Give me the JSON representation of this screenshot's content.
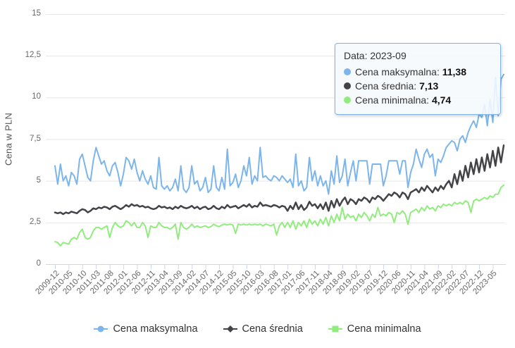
{
  "colors": {
    "max_series": "#7cb5ec",
    "avg_series": "#434348",
    "min_series": "#90ed7d",
    "grid_line": "#e6e6e6",
    "axis_line": "#ccd6eb",
    "axis_text": "#666666",
    "legend_text": "#333333",
    "tooltip_border": "#7cb5ec"
  },
  "tooltip": {
    "header": "Data: 2023-09",
    "rows": [
      {
        "label": "Cena maksymalna: ",
        "value": "11,38"
      },
      {
        "label": "Cena średnia: ",
        "value": "7,13"
      },
      {
        "label": "Cena minimalna: ",
        "value": "4,74"
      }
    ]
  },
  "chart_data": {
    "type": "line",
    "title": "",
    "grid": "horizontal",
    "legend_position": "bottom",
    "y_axis": {
      "title": "Cena w PLN",
      "min": 0,
      "max": 15,
      "ticks": [
        {
          "value": 0,
          "label": "0"
        },
        {
          "value": 2.5,
          "label": "2,5"
        },
        {
          "value": 5,
          "label": "5"
        },
        {
          "value": 7.5,
          "label": "7,5"
        },
        {
          "value": 10,
          "label": "10"
        },
        {
          "value": 12.5,
          "label": "12,5"
        },
        {
          "value": 15,
          "label": "15"
        }
      ]
    },
    "x_axis": {
      "frequency": "monthly",
      "first_point": "2009-12",
      "last_point": "2023-09",
      "points_per_tick": 5,
      "tick_labels": [
        "2009-12",
        "2010-05",
        "2010-10",
        "2011-03",
        "2011-08",
        "2012-01",
        "2012-06",
        "2012-11",
        "2013-04",
        "2013-09",
        "2014-02",
        "2014-07",
        "2014-12",
        "2015-05",
        "2015-10",
        "2016-03",
        "2016-08",
        "2017-01",
        "2017-06",
        "2017-11",
        "2018-04",
        "2018-09",
        "2019-02",
        "2019-07",
        "2019-12",
        "2020-06",
        "2020-11",
        "2021-04",
        "2021-09",
        "2022-02",
        "2022-07",
        "2022-12",
        "2023-05"
      ]
    },
    "series": [
      {
        "name": "Cena maksymalna",
        "color": "#7cb5ec",
        "marker": "circle",
        "last_value": 11.38,
        "values": [
          5.9,
          4.8,
          6.0,
          5.0,
          5.3,
          4.7,
          5.5,
          5.3,
          4.8,
          6.3,
          6.6,
          5.9,
          5.2,
          5.0,
          6.2,
          7.0,
          6.5,
          6.0,
          6.2,
          5.6,
          5.3,
          5.9,
          6.1,
          5.5,
          4.7,
          5.4,
          6.4,
          6.2,
          5.7,
          6.3,
          5.5,
          5.0,
          5.6,
          5.1,
          4.8,
          5.3,
          4.6,
          4.5,
          6.4,
          4.7,
          4.5,
          4.7,
          4.4,
          4.6,
          5.1,
          4.4,
          5.9,
          4.5,
          4.3,
          4.6,
          5.9,
          4.8,
          5.0,
          4.4,
          4.6,
          5.2,
          4.3,
          4.5,
          5.9,
          4.6,
          4.4,
          5.2,
          4.5,
          6.9,
          4.7,
          4.9,
          5.4,
          4.6,
          5.0,
          5.9,
          5.3,
          6.4,
          4.8,
          5.3,
          5.0,
          7.0,
          5.2,
          5.3,
          5.1,
          5.0,
          5.3,
          5.2,
          5.0,
          5.3,
          5.1,
          4.9,
          5.1,
          4.6,
          6.6,
          4.7,
          5.0,
          4.4,
          4.6,
          6.4,
          5.0,
          5.6,
          4.7,
          5.3,
          4.7,
          5.0,
          4.2,
          5.6,
          4.8,
          6.5,
          4.9,
          5.3,
          6.3,
          4.7,
          5.5,
          6.2,
          5.0,
          6.2,
          6.2,
          6.2,
          6.2,
          4.8,
          6.0,
          6.0,
          6.0,
          6.0,
          4.7,
          5.3,
          6.2,
          6.2,
          6.2,
          6.2,
          5.4,
          6.2,
          6.2,
          4.6,
          5.5,
          6.0,
          6.9,
          6.3,
          5.8,
          6.6,
          6.9,
          6.4,
          6.6,
          5.3,
          6.3,
          6.1,
          6.5,
          7.0,
          7.2,
          7.4,
          7.3,
          6.8,
          7.5,
          7.7,
          7.3,
          7.9,
          8.3,
          8.6,
          8.2,
          9.0,
          8.8,
          9.6,
          8.3,
          9.9,
          8.5,
          11.2,
          8.9,
          11.1,
          11.38
        ]
      },
      {
        "name": "Cena średnia",
        "color": "#434348",
        "marker": "diamond",
        "last_value": 7.13,
        "values": [
          3.1,
          3.05,
          3.1,
          3.0,
          3.1,
          3.05,
          3.15,
          3.1,
          3.05,
          3.2,
          3.3,
          3.25,
          3.1,
          3.2,
          3.35,
          3.3,
          3.4,
          3.35,
          3.45,
          3.4,
          3.3,
          3.45,
          3.5,
          3.4,
          3.3,
          3.4,
          3.55,
          3.45,
          3.6,
          3.5,
          3.55,
          3.45,
          3.5,
          3.4,
          3.45,
          3.35,
          3.3,
          3.35,
          3.5,
          3.4,
          3.45,
          3.35,
          3.4,
          3.3,
          3.45,
          3.35,
          3.5,
          3.4,
          3.35,
          3.4,
          3.5,
          3.35,
          3.45,
          3.3,
          3.4,
          3.45,
          3.3,
          3.35,
          3.5,
          3.35,
          3.3,
          3.45,
          3.35,
          3.55,
          3.4,
          3.45,
          3.5,
          3.35,
          3.45,
          3.55,
          3.45,
          3.6,
          3.4,
          3.5,
          3.45,
          3.7,
          3.5,
          3.55,
          3.5,
          3.45,
          3.55,
          3.5,
          3.4,
          3.5,
          3.45,
          3.2,
          3.5,
          3.3,
          3.7,
          3.3,
          3.55,
          3.25,
          3.4,
          3.75,
          3.5,
          3.6,
          3.35,
          3.6,
          3.3,
          3.7,
          3.2,
          3.8,
          3.4,
          3.9,
          3.5,
          3.8,
          4.0,
          3.6,
          3.9,
          3.8,
          3.6,
          3.9,
          3.8,
          4.0,
          3.9,
          3.7,
          4.0,
          3.9,
          4.1,
          4.0,
          3.8,
          4.0,
          4.2,
          4.1,
          4.3,
          4.2,
          4.0,
          4.3,
          4.2,
          3.9,
          4.3,
          4.4,
          4.5,
          4.3,
          4.6,
          4.4,
          4.7,
          4.5,
          4.3,
          4.6,
          4.4,
          4.7,
          4.5,
          4.8,
          5.0,
          4.6,
          5.4,
          4.8,
          5.6,
          5.0,
          5.9,
          5.2,
          6.1,
          5.4,
          6.3,
          5.5,
          6.4,
          5.6,
          6.6,
          5.8,
          6.8,
          5.9,
          7.0,
          6.1,
          7.13
        ]
      },
      {
        "name": "Cena minimalna",
        "color": "#90ed7d",
        "marker": "square",
        "last_value": 4.74,
        "values": [
          1.35,
          1.3,
          1.1,
          1.3,
          1.25,
          1.2,
          1.5,
          1.6,
          1.5,
          1.9,
          2.1,
          1.6,
          1.5,
          1.6,
          2.0,
          2.2,
          2.2,
          2.1,
          2.2,
          2.3,
          1.6,
          2.2,
          2.5,
          2.3,
          2.2,
          2.3,
          2.6,
          2.5,
          2.3,
          2.5,
          2.2,
          2.2,
          2.5,
          2.3,
          1.6,
          2.3,
          2.2,
          2.2,
          2.5,
          2.3,
          2.2,
          2.2,
          2.1,
          2.2,
          2.4,
          1.5,
          2.5,
          2.2,
          2.1,
          2.2,
          2.4,
          2.2,
          2.3,
          2.2,
          2.25,
          2.3,
          2.2,
          2.25,
          2.4,
          2.3,
          2.25,
          2.35,
          2.4,
          2.35,
          2.4,
          2.35,
          1.85,
          2.4,
          2.35,
          2.4,
          2.35,
          2.4,
          2.35,
          2.4,
          2.35,
          2.4,
          2.3,
          2.4,
          2.35,
          2.3,
          2.4,
          1.75,
          2.3,
          2.5,
          2.2,
          2.5,
          2.2,
          2.6,
          2.1,
          2.5,
          2.3,
          2.6,
          2.2,
          2.7,
          2.4,
          2.6,
          2.3,
          2.7,
          2.4,
          2.8,
          2.3,
          2.9,
          2.5,
          3.0,
          2.6,
          3.4,
          2.7,
          3.0,
          2.8,
          2.9,
          2.6,
          3.0,
          2.8,
          3.1,
          2.9,
          2.6,
          3.0,
          2.8,
          3.4,
          2.9,
          3.0,
          2.9,
          3.1,
          3.0,
          2.5,
          3.1,
          3.0,
          3.2,
          3.0,
          2.4,
          3.1,
          3.2,
          3.3,
          3.1,
          3.4,
          3.2,
          3.5,
          3.3,
          3.4,
          3.2,
          3.5,
          3.4,
          3.6,
          3.5,
          3.6,
          3.5,
          3.7,
          3.6,
          3.7,
          3.6,
          3.8,
          3.7,
          3.1,
          3.8,
          3.9,
          3.8,
          3.9,
          4.0,
          3.9,
          4.1,
          4.0,
          4.2,
          4.2,
          4.6,
          4.74
        ]
      }
    ]
  }
}
